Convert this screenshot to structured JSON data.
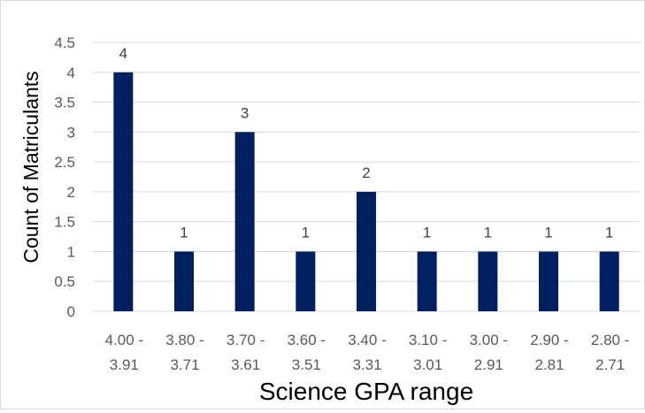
{
  "chart_data": {
    "type": "bar",
    "title": "",
    "xlabel": "Science GPA range",
    "ylabel": "Count of Matriculants",
    "categories": [
      [
        "4.00 -",
        "3.91"
      ],
      [
        "3.80 -",
        "3.71"
      ],
      [
        "3.70 -",
        "3.61"
      ],
      [
        "3.60 -",
        "3.51"
      ],
      [
        "3.40 -",
        "3.31"
      ],
      [
        "3.10 -",
        "3.01"
      ],
      [
        "3.00 -",
        "2.91"
      ],
      [
        "2.90 -",
        "2.81"
      ],
      [
        "2.80 -",
        "2.71"
      ]
    ],
    "values": [
      4,
      1,
      3,
      1,
      2,
      1,
      1,
      1,
      1
    ],
    "ylim": [
      0,
      4.5
    ],
    "yticks": [
      "0",
      "0.5",
      "1",
      "1.5",
      "2",
      "2.5",
      "3",
      "3.5",
      "4",
      "4.5"
    ],
    "grid": true,
    "legend": "none",
    "data_labels": true,
    "colors": {
      "bar": "#002060",
      "grid": "#d9d9d9",
      "tick": "#595959"
    }
  }
}
